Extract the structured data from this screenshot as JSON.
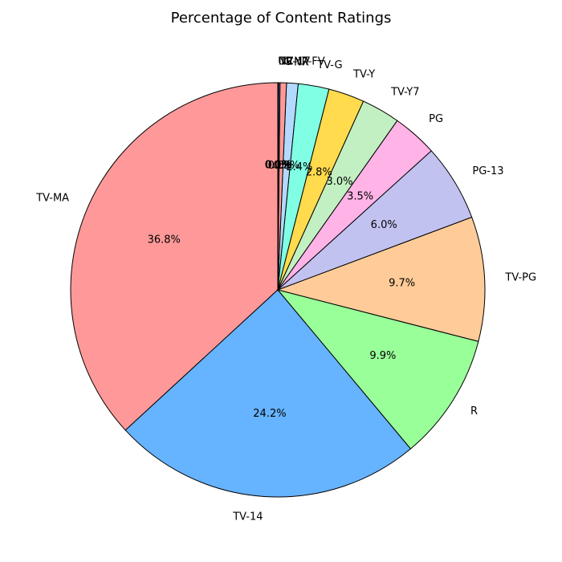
{
  "chart_data": {
    "type": "pie",
    "title": "Percentage of Content Ratings",
    "start_angle": 90,
    "direction": "counterclockwise",
    "edge_color": "#000000",
    "slices": [
      {
        "label": "TV-MA",
        "pct": "36.8%",
        "value": 36.8,
        "color": "#ff9999"
      },
      {
        "label": "TV-14",
        "pct": "24.2%",
        "value": 24.2,
        "color": "#66b3ff"
      },
      {
        "label": "R",
        "pct": "9.9%",
        "value": 9.9,
        "color": "#99ff99"
      },
      {
        "label": "TV-PG",
        "pct": "9.7%",
        "value": 9.7,
        "color": "#ffcc99"
      },
      {
        "label": "PG-13",
        "pct": "6.0%",
        "value": 6.0,
        "color": "#c2c2f0"
      },
      {
        "label": "PG",
        "pct": "3.5%",
        "value": 3.5,
        "color": "#ffb3e6"
      },
      {
        "label": "TV-Y7",
        "pct": "3.0%",
        "value": 3.0,
        "color": "#c2f0c2"
      },
      {
        "label": "TV-Y",
        "pct": "2.8%",
        "value": 2.8,
        "color": "#ffdb4d"
      },
      {
        "label": "TV-G",
        "pct": "2.4%",
        "value": 2.4,
        "color": "#80ffe5"
      },
      {
        "label": "NR",
        "pct": "0.9%",
        "value": 0.9,
        "color": "#b3d9ff"
      },
      {
        "label": "G",
        "pct": "0.5%",
        "value": 0.5,
        "color": "#ff9999"
      },
      {
        "label": "TV-Y7-FV",
        "pct": "0.1%",
        "value": 0.1,
        "color": "#66b3ff"
      },
      {
        "label": "NC-17",
        "pct": "0.0%",
        "value": 0.04,
        "color": "#99ff99"
      },
      {
        "label": "UR",
        "pct": "0.0%",
        "value": 0.03,
        "color": "#ffcc99"
      }
    ]
  }
}
